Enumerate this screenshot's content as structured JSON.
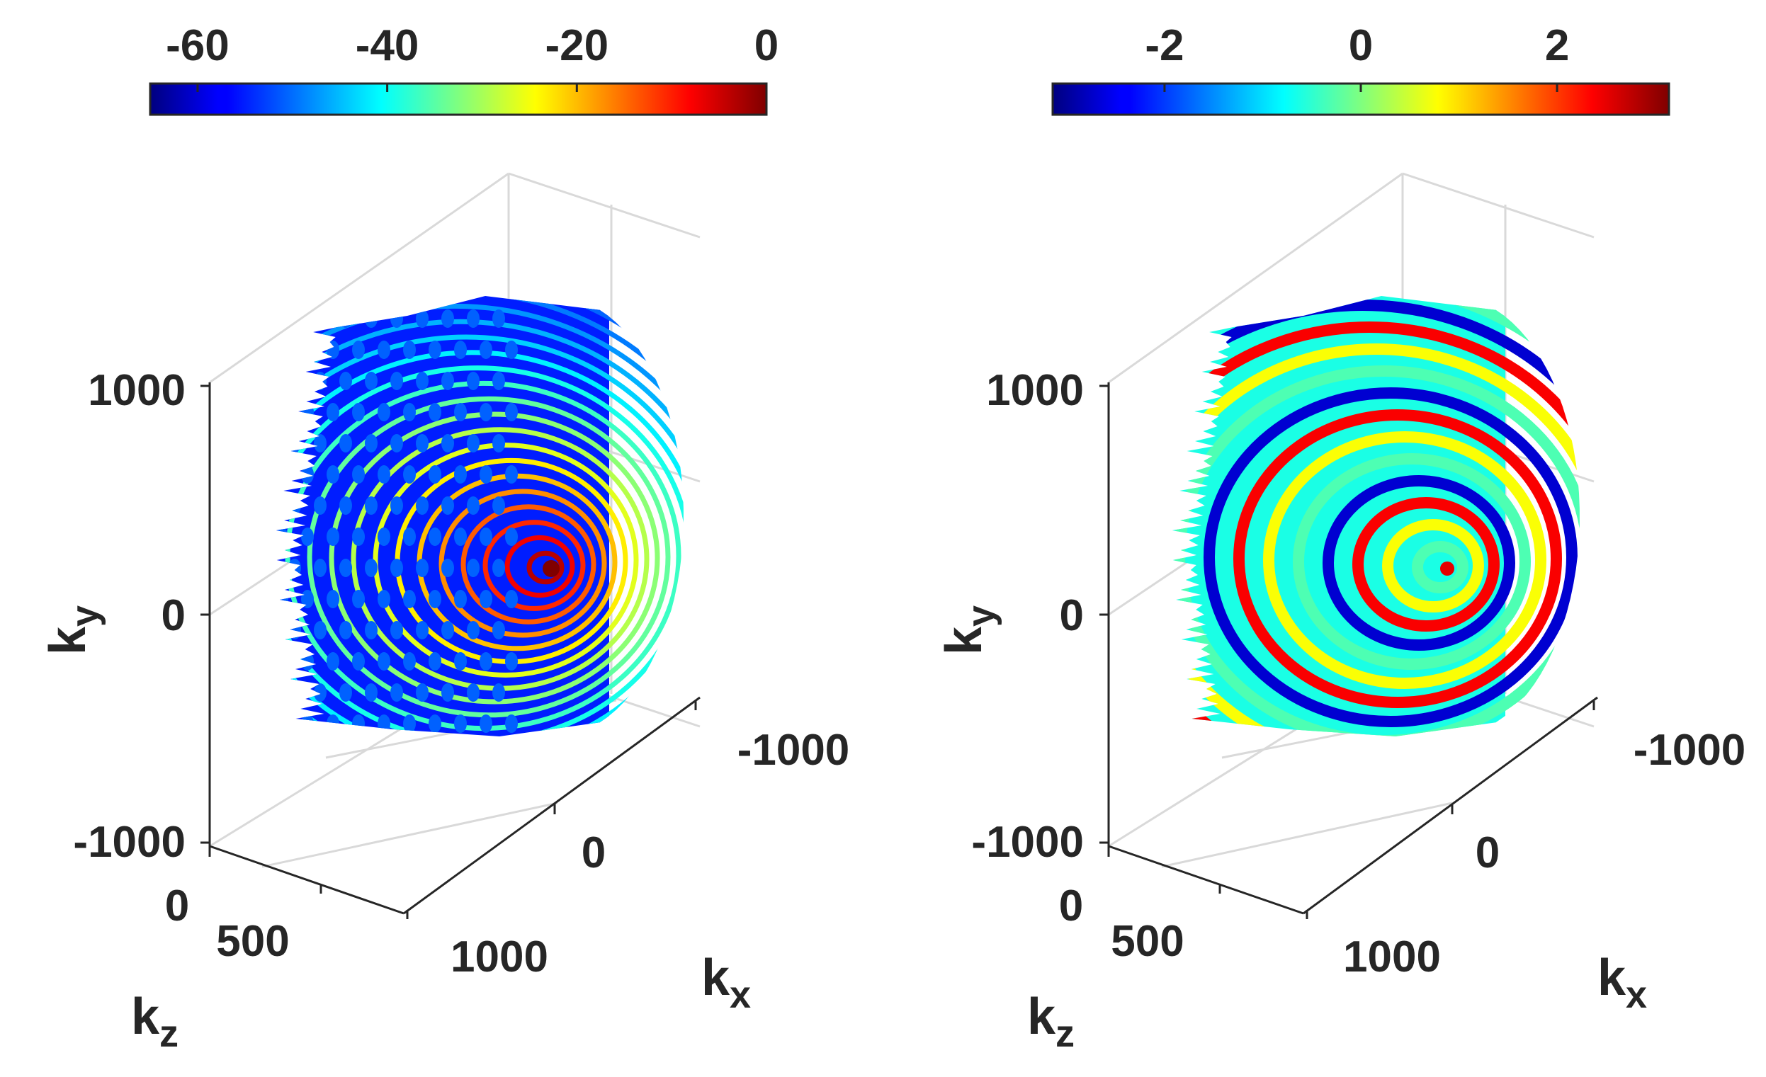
{
  "chart_data": [
    {
      "type": "surface3d",
      "description_key": "magnitude",
      "colormap": "jet",
      "colorbar": {
        "location": "top",
        "range": [
          -65,
          0
        ],
        "ticks": [
          "-60",
          "-40",
          "-20",
          "0"
        ],
        "tick_values": [
          -60,
          -40,
          -20,
          0
        ]
      },
      "axes": {
        "xlabel": "k",
        "xlabel_sub": "x",
        "ylabel": "k",
        "ylabel_sub": "y",
        "zlabel": "k",
        "zlabel_sub": "z",
        "x_ticks": [
          "-1000",
          "0",
          "1000"
        ],
        "y_ticks": [
          "-1000",
          "0",
          "1000"
        ],
        "z_ticks": [
          "0",
          "500"
        ],
        "x_range": [
          -1000,
          1000
        ],
        "y_range": [
          -1000,
          1000
        ],
        "z_range": [
          0,
          1000
        ],
        "grid": true
      },
      "surface": "hemisphere",
      "rings": 24,
      "peak_value": 0,
      "background_value": -55
    },
    {
      "type": "surface3d",
      "description_key": "phase",
      "colormap": "jet",
      "colorbar": {
        "location": "top",
        "range": [
          -3.14,
          3.14
        ],
        "ticks": [
          "-2",
          "0",
          "2"
        ],
        "tick_values": [
          -2,
          0,
          2
        ]
      },
      "axes": {
        "xlabel": "k",
        "xlabel_sub": "x",
        "ylabel": "k",
        "ylabel_sub": "y",
        "zlabel": "k",
        "zlabel_sub": "z",
        "x_ticks": [
          "-1000",
          "0",
          "1000"
        ],
        "y_ticks": [
          "-1000",
          "0",
          "1000"
        ],
        "z_ticks": [
          "0",
          "500"
        ],
        "x_range": [
          -1000,
          1000
        ],
        "y_range": [
          -1000,
          1000
        ],
        "z_range": [
          0,
          1000
        ],
        "grid": true
      },
      "surface": "hemisphere",
      "rings": 16
    }
  ]
}
